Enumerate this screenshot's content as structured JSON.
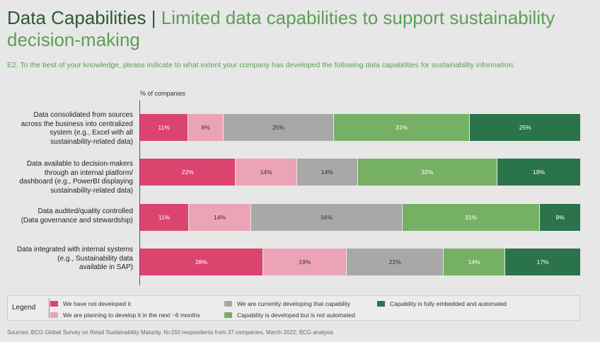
{
  "header": {
    "title_main": "Data Capabilities",
    "title_sep": " | ",
    "title_sub": "Limited data capabilities to support sustainability decision-making",
    "question": "E2. To the best of your knowledge, please indicate to what extent your company has developed the following data capabilities for sustainability information:"
  },
  "footer": {
    "source": "Sources: BCG Global Survey on Retail Sustainability Maturity, N=150 respondents from 37 companies, March 2022; BCG analysis"
  },
  "chart_data": {
    "type": "bar",
    "orientation": "horizontal",
    "stacked": true,
    "unit_label": "% of companies",
    "categories": [
      [
        "Data consolidated from sources",
        "across the business into centralized",
        "system (e.g., Excel with all",
        "sustainability-related data)"
      ],
      [
        "Data available to decision-makers",
        "through an internal platform/",
        "dashboard (e.g., PowerBI displaying",
        "sustainability-related data)"
      ],
      [
        "Data audited/quality controlled",
        "(Data governance and stewardship)"
      ],
      [
        "Data integrated with internal systems",
        "(e.g., Sustainability data",
        "available in SAP)"
      ]
    ],
    "series": [
      {
        "name": "We have not developed it",
        "color": "#dc4470",
        "text_dark": false,
        "values": [
          11,
          22,
          11,
          28
        ]
      },
      {
        "name": "We are planning to develop it in the next ~6 months",
        "color": "#eca3b6",
        "text_dark": true,
        "values": [
          8,
          14,
          14,
          19
        ]
      },
      {
        "name": "We are currently developing that capability",
        "color": "#a8a8a8",
        "text_dark": true,
        "values": [
          25,
          14,
          34,
          22
        ]
      },
      {
        "name": "Capability is developed but is not automated",
        "color": "#76b064",
        "text_dark": false,
        "values": [
          31,
          32,
          31,
          14
        ]
      },
      {
        "name": "Capability is fully embedded and automated",
        "color": "#2a734b",
        "text_dark": false,
        "values": [
          25,
          19,
          9,
          17
        ]
      }
    ],
    "legend_title": "Legend",
    "legend_placement": "bottom",
    "xlim": [
      0,
      100
    ]
  }
}
